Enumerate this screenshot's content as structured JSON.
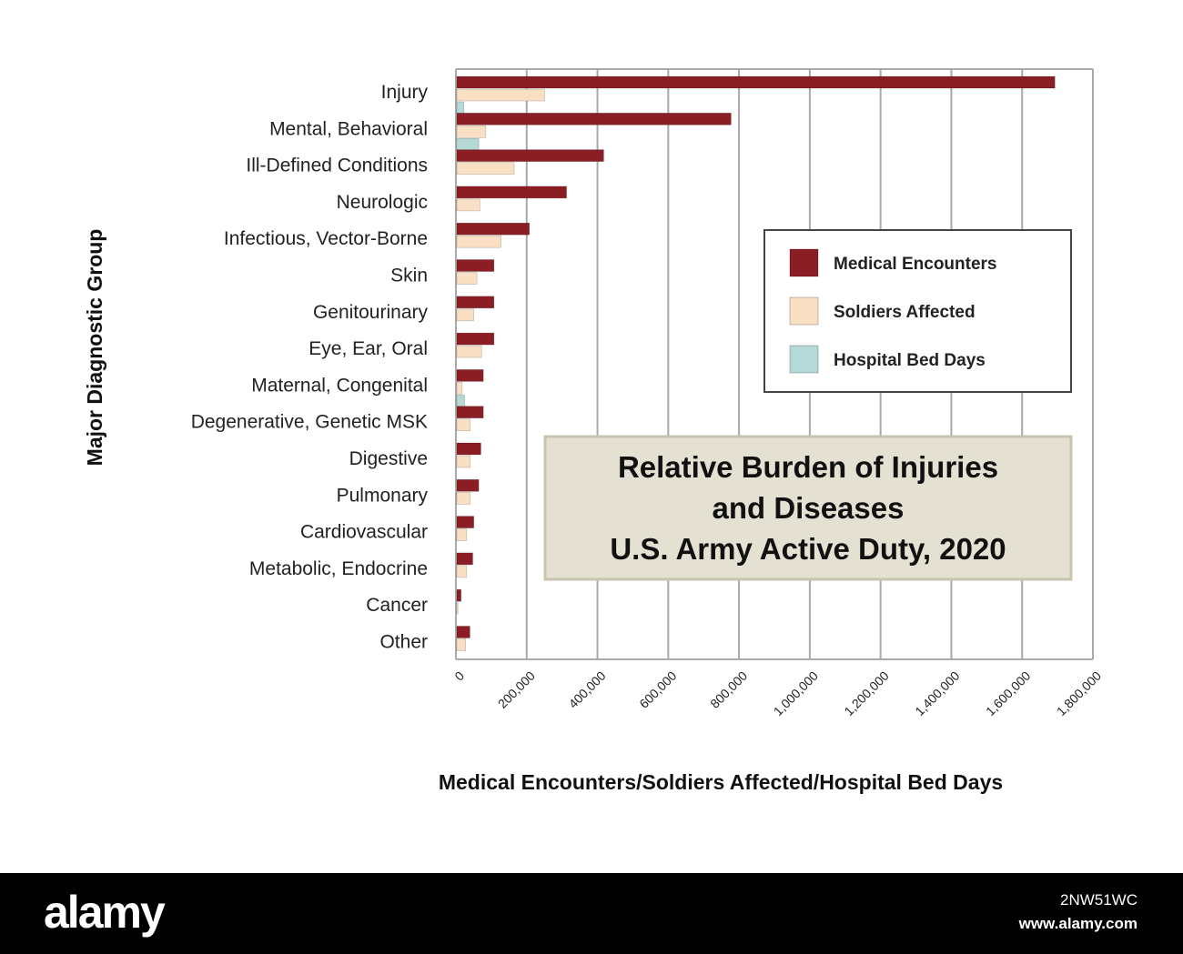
{
  "chart_data": {
    "type": "bar",
    "orientation": "horizontal",
    "title_lines": [
      "Relative Burden of Injuries",
      "and Diseases",
      "U.S. Army Active Duty, 2020"
    ],
    "xlabel": "Medical Encounters/Soldiers Affected/Hospital Bed Days",
    "ylabel": "Major Diagnostic Group",
    "xlim": [
      0,
      1800000
    ],
    "x_ticks": [
      "0",
      "200,000",
      "400,000",
      "600,000",
      "800,000",
      "1,000,000",
      "1,200,000",
      "1,400,000",
      "1,600,000",
      "1,800,000"
    ],
    "grid": "vertical",
    "legend_position": "right",
    "categories": [
      "Injury",
      "Mental, Behavioral",
      "Ill-Defined Conditions",
      "Neurologic",
      "Infectious, Vector-Borne",
      "Skin",
      "Genitourinary",
      "Eye, Ear, Oral",
      "Maternal, Congenital",
      "Degenerative, Genetic MSK",
      "Digestive",
      "Pulmonary",
      "Cardiovascular",
      "Metabolic, Endocrine",
      "Cancer",
      "Other"
    ],
    "series": [
      {
        "name": "Medical Encounters",
        "color": "#8b1e24",
        "values": [
          1690000,
          775000,
          415000,
          310000,
          205000,
          105000,
          105000,
          105000,
          75000,
          75000,
          68000,
          62000,
          48000,
          45000,
          12000,
          37000
        ]
      },
      {
        "name": "Soldiers Affected",
        "color": "#f9dfc4",
        "values": [
          248000,
          82000,
          162000,
          65000,
          125000,
          57000,
          48000,
          70000,
          15000,
          38000,
          38000,
          38000,
          28000,
          28000,
          3000,
          25000
        ]
      },
      {
        "name": "Hospital Bed Days",
        "color": "#b5d9d6",
        "values": [
          20000,
          62000,
          0,
          0,
          0,
          0,
          0,
          0,
          22000,
          0,
          0,
          0,
          0,
          0,
          0,
          0
        ]
      }
    ]
  },
  "colors": {
    "grid": "#a9a9a9",
    "title_box_fill": "#e4e1d2",
    "title_box_stroke": "#c8c4b0"
  },
  "footer": {
    "logo": "alamy",
    "image_id": "2NW51WC",
    "url": "www.alamy.com"
  }
}
